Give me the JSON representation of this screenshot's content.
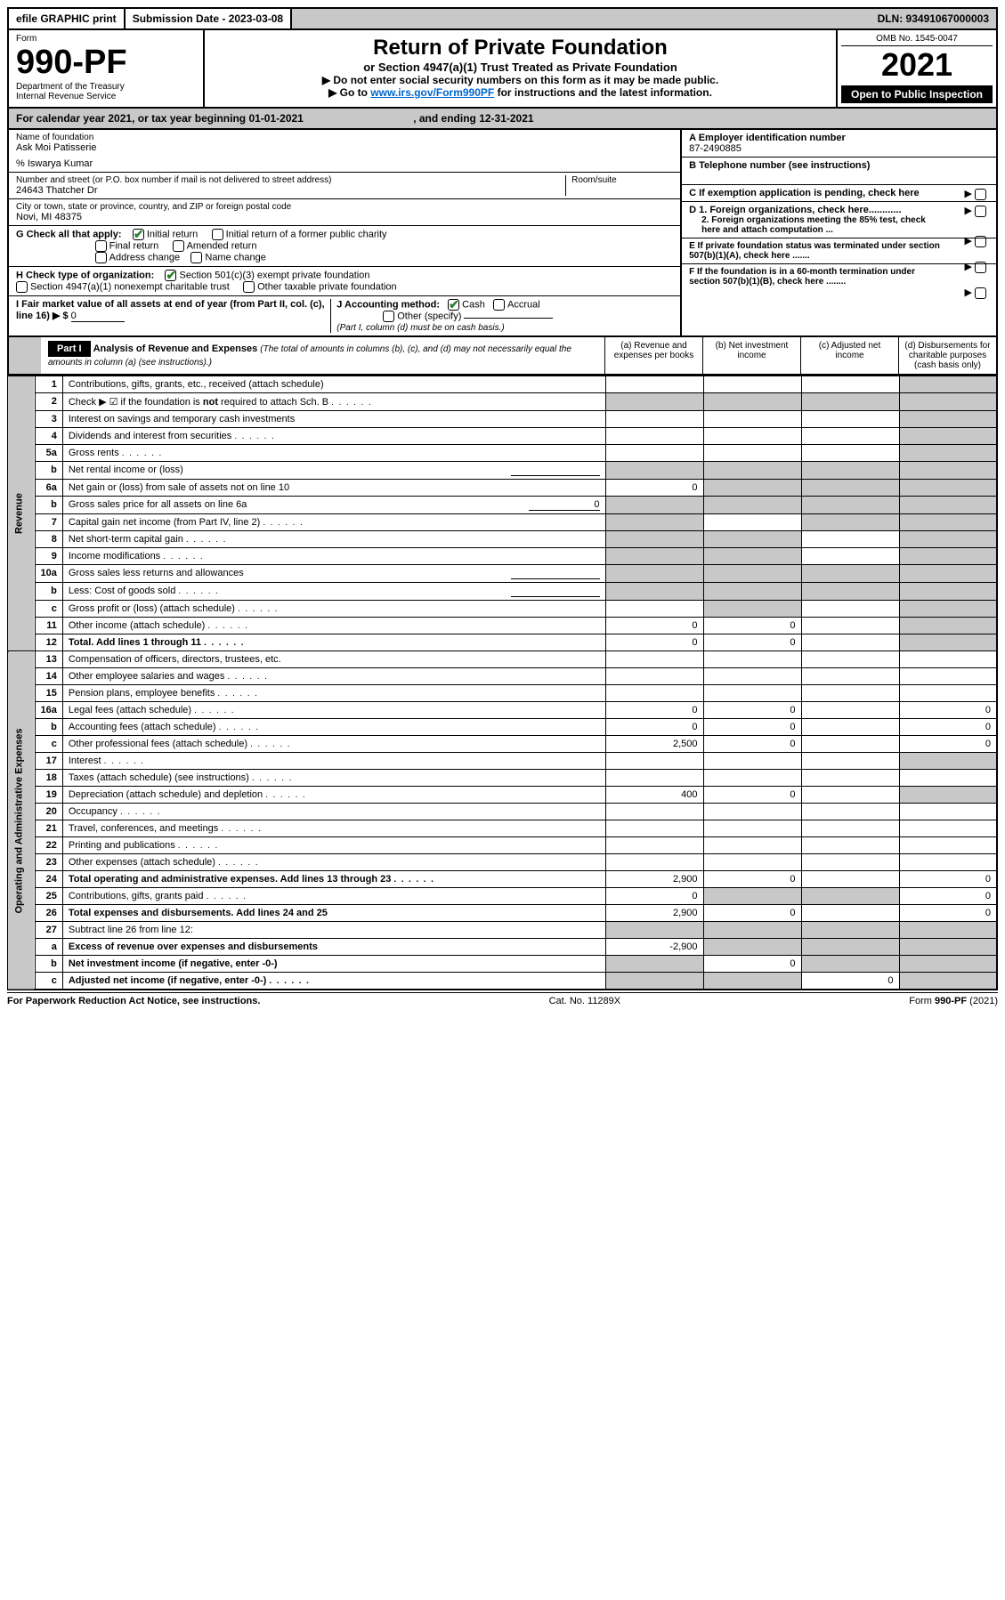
{
  "topbar": {
    "efile": "efile GRAPHIC print",
    "submission_label": "Submission Date - 2023-03-08",
    "dln": "DLN: 93491067000003"
  },
  "header": {
    "form_label": "Form",
    "form_no": "990-PF",
    "dept": "Department of the Treasury",
    "irs": "Internal Revenue Service",
    "title": "Return of Private Foundation",
    "subtitle": "or Section 4947(a)(1) Trust Treated as Private Foundation",
    "instr1": "▶ Do not enter social security numbers on this form as it may be made public.",
    "instr2_prefix": "▶ Go to ",
    "instr2_link": "www.irs.gov/Form990PF",
    "instr2_suffix": " for instructions and the latest information.",
    "omb": "OMB No. 1545-0047",
    "year": "2021",
    "open_public": "Open to Public Inspection"
  },
  "calyear": {
    "text_prefix": "For calendar year 2021, or tax year beginning ",
    "begin": "01-01-2021",
    "mid": " , and ending ",
    "end": "12-31-2021"
  },
  "info": {
    "name_label": "Name of foundation",
    "name": "Ask Moi Patisserie",
    "care_of": "% Iswarya Kumar",
    "addr_label": "Number and street (or P.O. box number if mail is not delivered to street address)",
    "addr": "24643 Thatcher Dr",
    "room_label": "Room/suite",
    "city_label": "City or town, state or province, country, and ZIP or foreign postal code",
    "city": "Novi, MI  48375",
    "g_label": "G Check all that apply:",
    "g_opts": [
      "Initial return",
      "Initial return of a former public charity",
      "Final return",
      "Amended return",
      "Address change",
      "Name change"
    ],
    "h_label": "H Check type of organization:",
    "h_opts": [
      "Section 501(c)(3) exempt private foundation",
      "Section 4947(a)(1) nonexempt charitable trust",
      "Other taxable private foundation"
    ],
    "i_label": "I Fair market value of all assets at end of year (from Part II, col. (c), line 16) ▶ $",
    "i_value": "0",
    "j_label": "J Accounting method:",
    "j_opts": [
      "Cash",
      "Accrual"
    ],
    "j_other": "Other (specify)",
    "j_note": "(Part I, column (d) must be on cash basis.)",
    "a_label": "A Employer identification number",
    "a_value": "87-2490885",
    "b_label": "B Telephone number (see instructions)",
    "c_label": "C If exemption application is pending, check here",
    "d1_label": "D 1. Foreign organizations, check here............",
    "d2_label": "2. Foreign organizations meeting the 85% test, check here and attach computation ...",
    "e_label": "E  If private foundation status was terminated under section 507(b)(1)(A), check here .......",
    "f_label": "F  If the foundation is in a 60-month termination under section 507(b)(1)(B), check here ........"
  },
  "part1": {
    "label": "Part I",
    "title": "Analysis of Revenue and Expenses",
    "note": "(The total of amounts in columns (b), (c), and (d) may not necessarily equal the amounts in column (a) (see instructions).)",
    "cols": {
      "a": "(a) Revenue and expenses per books",
      "b": "(b) Net investment income",
      "c": "(c) Adjusted net income",
      "d": "(d) Disbursements for charitable purposes (cash basis only)"
    }
  },
  "sections": {
    "revenue": "Revenue",
    "expenses": "Operating and Administrative Expenses"
  },
  "lines": [
    {
      "no": "1",
      "desc": "Contributions, gifts, grants, etc., received (attach schedule)",
      "a": "",
      "b": "",
      "c": "",
      "d": "",
      "shade_d": true
    },
    {
      "no": "2",
      "desc": "Check ▶ ☑ if the foundation is not required to attach Sch. B",
      "a": "",
      "b": "",
      "c": "",
      "d": "",
      "shade_all": true,
      "dots": true,
      "bold_not": true
    },
    {
      "no": "3",
      "desc": "Interest on savings and temporary cash investments",
      "a": "",
      "b": "",
      "c": "",
      "d": "",
      "shade_d": true
    },
    {
      "no": "4",
      "desc": "Dividends and interest from securities",
      "a": "",
      "b": "",
      "c": "",
      "d": "",
      "shade_d": true,
      "dots": true
    },
    {
      "no": "5a",
      "desc": "Gross rents",
      "a": "",
      "b": "",
      "c": "",
      "d": "",
      "shade_d": true,
      "dots": true
    },
    {
      "no": "b",
      "desc": "Net rental income or (loss)",
      "a": "",
      "b": "",
      "c": "",
      "d": "",
      "shade_all": true,
      "inline_blank": true
    },
    {
      "no": "6a",
      "desc": "Net gain or (loss) from sale of assets not on line 10",
      "a": "0",
      "b": "",
      "c": "",
      "d": "",
      "shade_bcd": true
    },
    {
      "no": "b",
      "desc": "Gross sales price for all assets on line 6a",
      "a": "",
      "b": "",
      "c": "",
      "d": "",
      "shade_all": true,
      "inline_val": "0"
    },
    {
      "no": "7",
      "desc": "Capital gain net income (from Part IV, line 2)",
      "a": "",
      "b": "",
      "c": "",
      "d": "",
      "shade_acd": true,
      "dots": true
    },
    {
      "no": "8",
      "desc": "Net short-term capital gain",
      "a": "",
      "b": "",
      "c": "",
      "d": "",
      "shade_abd": true,
      "dots": true
    },
    {
      "no": "9",
      "desc": "Income modifications",
      "a": "",
      "b": "",
      "c": "",
      "d": "",
      "shade_abd": true,
      "dots": true
    },
    {
      "no": "10a",
      "desc": "Gross sales less returns and allowances",
      "a": "",
      "b": "",
      "c": "",
      "d": "",
      "shade_all": true,
      "inline_blank": true
    },
    {
      "no": "b",
      "desc": "Less: Cost of goods sold",
      "a": "",
      "b": "",
      "c": "",
      "d": "",
      "shade_all": true,
      "dots": true,
      "inline_blank": true
    },
    {
      "no": "c",
      "desc": "Gross profit or (loss) (attach schedule)",
      "a": "",
      "b": "",
      "c": "",
      "d": "",
      "shade_bd": true,
      "dots": true
    },
    {
      "no": "11",
      "desc": "Other income (attach schedule)",
      "a": "0",
      "b": "0",
      "c": "",
      "d": "",
      "shade_d": true,
      "dots": true
    },
    {
      "no": "12",
      "desc": "Total. Add lines 1 through 11",
      "a": "0",
      "b": "0",
      "c": "",
      "d": "",
      "bold": true,
      "shade_d": true,
      "dots": true
    },
    {
      "no": "13",
      "desc": "Compensation of officers, directors, trustees, etc.",
      "a": "",
      "b": "",
      "c": "",
      "d": "",
      "section": "expenses"
    },
    {
      "no": "14",
      "desc": "Other employee salaries and wages",
      "a": "",
      "b": "",
      "c": "",
      "d": "",
      "dots": true
    },
    {
      "no": "15",
      "desc": "Pension plans, employee benefits",
      "a": "",
      "b": "",
      "c": "",
      "d": "",
      "dots": true
    },
    {
      "no": "16a",
      "desc": "Legal fees (attach schedule)",
      "a": "0",
      "b": "0",
      "c": "",
      "d": "0",
      "dots": true
    },
    {
      "no": "b",
      "desc": "Accounting fees (attach schedule)",
      "a": "0",
      "b": "0",
      "c": "",
      "d": "0",
      "dots": true
    },
    {
      "no": "c",
      "desc": "Other professional fees (attach schedule)",
      "a": "2,500",
      "b": "0",
      "c": "",
      "d": "0",
      "dots": true
    },
    {
      "no": "17",
      "desc": "Interest",
      "a": "",
      "b": "",
      "c": "",
      "d": "",
      "dots": true,
      "shade_d": true
    },
    {
      "no": "18",
      "desc": "Taxes (attach schedule) (see instructions)",
      "a": "",
      "b": "",
      "c": "",
      "d": "",
      "dots": true
    },
    {
      "no": "19",
      "desc": "Depreciation (attach schedule) and depletion",
      "a": "400",
      "b": "0",
      "c": "",
      "d": "",
      "shade_d": true,
      "dots": true
    },
    {
      "no": "20",
      "desc": "Occupancy",
      "a": "",
      "b": "",
      "c": "",
      "d": "",
      "dots": true
    },
    {
      "no": "21",
      "desc": "Travel, conferences, and meetings",
      "a": "",
      "b": "",
      "c": "",
      "d": "",
      "dots": true
    },
    {
      "no": "22",
      "desc": "Printing and publications",
      "a": "",
      "b": "",
      "c": "",
      "d": "",
      "dots": true
    },
    {
      "no": "23",
      "desc": "Other expenses (attach schedule)",
      "a": "",
      "b": "",
      "c": "",
      "d": "",
      "dots": true
    },
    {
      "no": "24",
      "desc": "Total operating and administrative expenses. Add lines 13 through 23",
      "a": "2,900",
      "b": "0",
      "c": "",
      "d": "0",
      "bold": true,
      "dots": true
    },
    {
      "no": "25",
      "desc": "Contributions, gifts, grants paid",
      "a": "0",
      "b": "",
      "c": "",
      "d": "0",
      "shade_bc": true,
      "dots": true
    },
    {
      "no": "26",
      "desc": "Total expenses and disbursements. Add lines 24 and 25",
      "a": "2,900",
      "b": "0",
      "c": "",
      "d": "0",
      "bold": true
    },
    {
      "no": "27",
      "desc": "Subtract line 26 from line 12:",
      "a": "",
      "b": "",
      "c": "",
      "d": "",
      "shade_all": true
    },
    {
      "no": "a",
      "desc": "Excess of revenue over expenses and disbursements",
      "a": "-2,900",
      "b": "",
      "c": "",
      "d": "",
      "bold": true,
      "shade_bcd": true
    },
    {
      "no": "b",
      "desc": "Net investment income (if negative, enter -0-)",
      "a": "",
      "b": "0",
      "c": "",
      "d": "",
      "bold": true,
      "shade_acd": true
    },
    {
      "no": "c",
      "desc": "Adjusted net income (if negative, enter -0-)",
      "a": "",
      "b": "",
      "c": "0",
      "d": "",
      "bold": true,
      "shade_abd": true,
      "dots": true
    }
  ],
  "footer": {
    "left": "For Paperwork Reduction Act Notice, see instructions.",
    "mid": "Cat. No. 11289X",
    "right": "Form 990-PF (2021)"
  },
  "colors": {
    "shade": "#c8c8c8",
    "link": "#0066cc",
    "check": "#2e7d32"
  }
}
